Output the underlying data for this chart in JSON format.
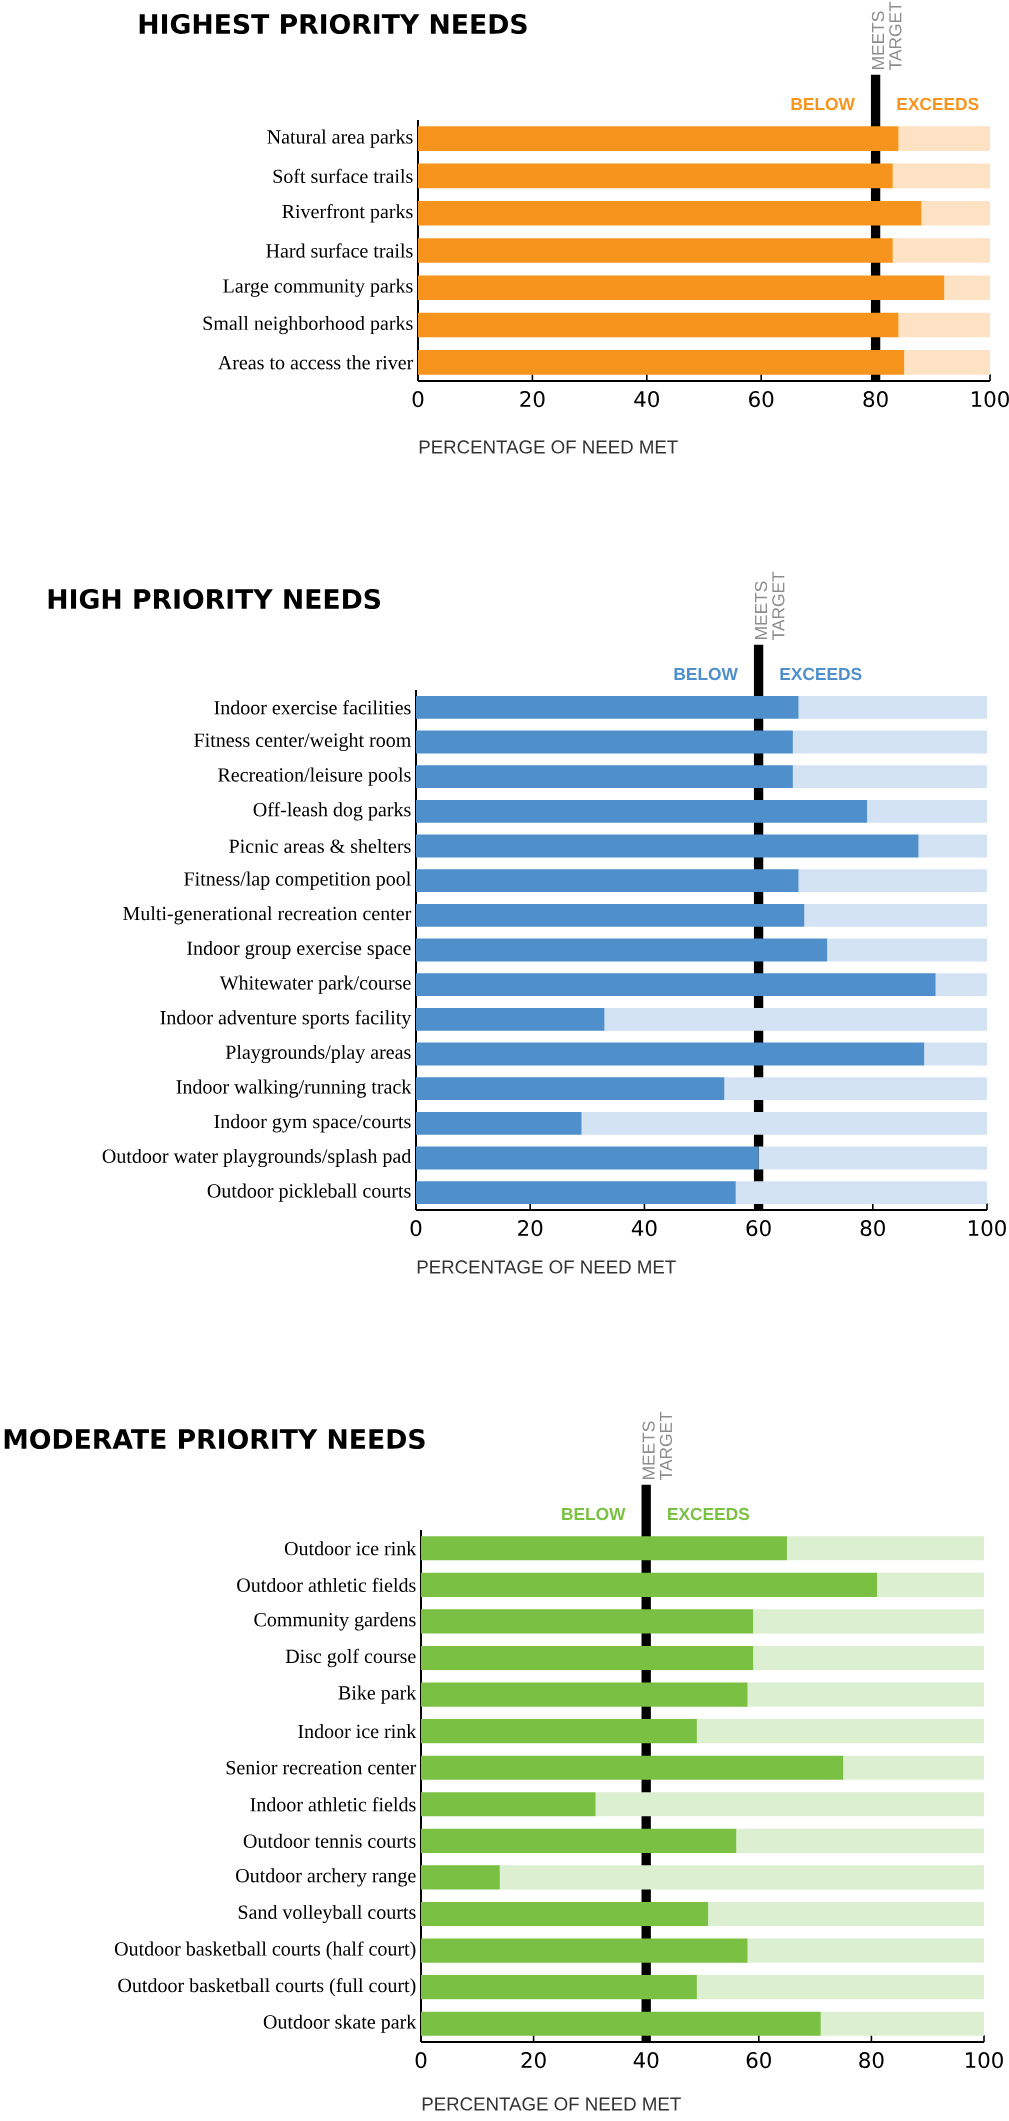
{
  "chart_data": [
    {
      "type": "bar",
      "orientation": "horizontal",
      "stacked": true,
      "title": "HIGHEST PRIORITY NEEDS",
      "xlabel": "PERCENTAGE OF NEED MET",
      "categories": [
        "Natural area parks",
        "Soft surface trails",
        "Riverfront parks",
        "Hard surface trails",
        "Large community parks",
        "Small neighborhood parks",
        "Areas to access the river"
      ],
      "series": [
        {
          "color": "#f7941d",
          "values": [
            84,
            83,
            88,
            83,
            92,
            84,
            85
          ]
        },
        {
          "color": "#fde3c4",
          "values": [
            16,
            17,
            12,
            17,
            8,
            16,
            15
          ]
        }
      ],
      "xlim": [
        0,
        100
      ],
      "xticks": [
        0,
        20,
        40,
        60,
        80,
        100
      ],
      "ref_lines": [
        {
          "axis": "x",
          "value": 80,
          "label": "MEETS TARGET",
          "color": "#000000"
        }
      ],
      "annotations": [
        "BELOW",
        "EXCEEDS"
      ]
    },
    {
      "type": "bar",
      "orientation": "horizontal",
      "stacked": true,
      "title": "HIGH PRIORITY NEEDS",
      "xlabel": "PERCENTAGE OF NEED MET",
      "categories": [
        "Indoor exercise facilities",
        "Fitness center/weight room",
        "Recreation/leisure pools",
        "Off-leash dog parks",
        "Picnic areas & shelters",
        "Fitness/lap competition pool",
        "Multi-generational recreation center",
        "Indoor group exercise space",
        "Whitewater park/course",
        "Indoor adventure sports facility",
        "Playgrounds/play areas",
        "Indoor walking/running track",
        "Indoor gym space/courts",
        "Outdoor water playgrounds/splash pad",
        "Outdoor pickleball courts"
      ],
      "series": [
        {
          "color": "#4f8fcc",
          "values": [
            67,
            66,
            66,
            79,
            88,
            67,
            68,
            72,
            91,
            33,
            89,
            54,
            29,
            60,
            56
          ]
        },
        {
          "color": "#d4e3f3",
          "values": [
            33,
            34,
            34,
            21,
            12,
            33,
            32,
            28,
            9,
            67,
            11,
            46,
            71,
            40,
            44
          ]
        }
      ],
      "xlim": [
        0,
        100
      ],
      "xticks": [
        0,
        20,
        40,
        60,
        80,
        100
      ],
      "ref_lines": [
        {
          "axis": "x",
          "value": 60,
          "label": "MEETS TARGET",
          "color": "#000000"
        }
      ],
      "annotations": [
        "BELOW",
        "EXCEEDS"
      ]
    },
    {
      "type": "bar",
      "orientation": "horizontal",
      "stacked": true,
      "title": "MODERATE PRIORITY NEEDS",
      "xlabel": "PERCENTAGE OF NEED MET",
      "categories": [
        "Outdoor ice rink",
        "Outdoor athletic fields",
        "Community gardens",
        "Disc golf course",
        "Bike park",
        "Indoor ice rink",
        "Senior recreation center",
        "Indoor athletic fields",
        "Outdoor tennis courts",
        "Outdoor archery range",
        "Sand volleyball courts",
        "Outdoor basketball courts (half court)",
        "Outdoor basketball courts (full court)",
        "Outdoor skate park"
      ],
      "series": [
        {
          "color": "#7ac143",
          "values": [
            65,
            81,
            59,
            59,
            58,
            49,
            75,
            31,
            56,
            14,
            51,
            58,
            49,
            71
          ]
        },
        {
          "color": "#dcefd0",
          "values": [
            35,
            19,
            41,
            41,
            42,
            51,
            25,
            69,
            44,
            86,
            49,
            42,
            51,
            29
          ]
        }
      ],
      "xlim": [
        0,
        100
      ],
      "xticks": [
        0,
        20,
        40,
        60,
        80,
        100
      ],
      "ref_lines": [
        {
          "axis": "x",
          "value": 40,
          "label": "MEETS TARGET",
          "color": "#000000"
        }
      ],
      "annotations": [
        "BELOW",
        "EXCEEDS"
      ]
    }
  ]
}
